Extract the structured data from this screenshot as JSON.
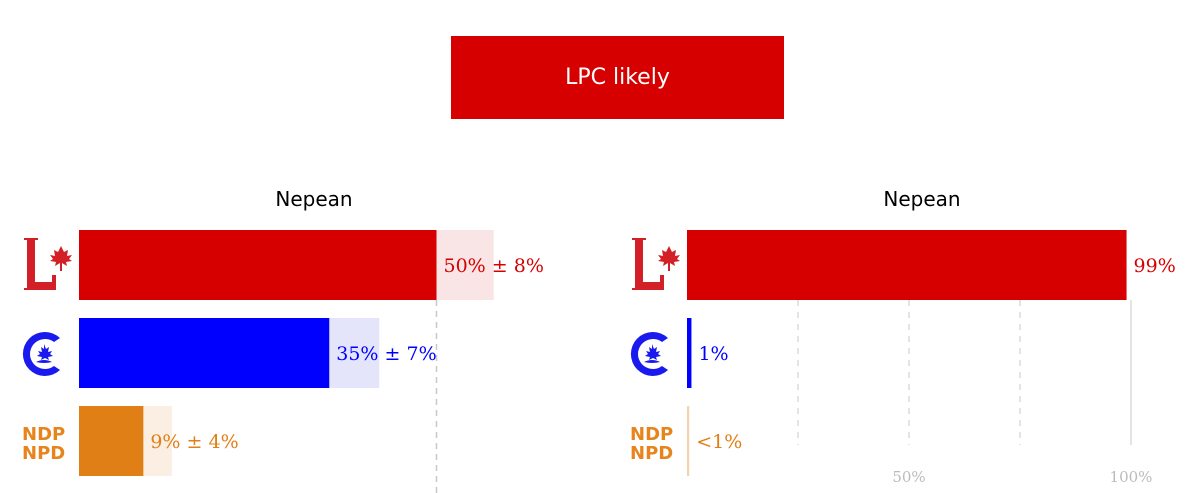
{
  "banner": {
    "text": "LPC likely",
    "color": "#d60000"
  },
  "chart_data": [
    {
      "type": "bar",
      "orientation": "horizontal",
      "title": "Nepean",
      "measure": "vote share",
      "categories": [
        "LPC",
        "CPC",
        "NDP"
      ],
      "values": [
        50,
        35,
        9
      ],
      "margin": [
        8,
        7,
        4
      ],
      "labels": [
        "50% ± 8%",
        "35% ± 7%",
        "9% ± 4%"
      ],
      "colors": [
        "#d60000",
        "#0000ff",
        "#e07f16"
      ],
      "band_colors": [
        "#f9e5e5",
        "#e4e4fb",
        "#fbefe3"
      ],
      "reference_line": 50,
      "xlim": [
        0,
        100
      ]
    },
    {
      "type": "bar",
      "orientation": "horizontal",
      "title": "Nepean",
      "measure": "win probability",
      "categories": [
        "LPC",
        "CPC",
        "NDP"
      ],
      "values": [
        99,
        1,
        0.5
      ],
      "labels": [
        "99%",
        "1%",
        "<1%"
      ],
      "colors": [
        "#d60000",
        "#0000ff",
        "#e07f16"
      ],
      "xlim": [
        0,
        100
      ],
      "xticks": [
        25,
        50,
        75,
        100
      ],
      "xtick_labels": [
        "",
        "50%",
        "",
        "100%"
      ],
      "grid": true
    }
  ],
  "logos": {
    "lpc": "liberal-logo",
    "cpc": "conservative-logo",
    "ndp": {
      "line1": "NDP",
      "line2": "NPD"
    }
  }
}
